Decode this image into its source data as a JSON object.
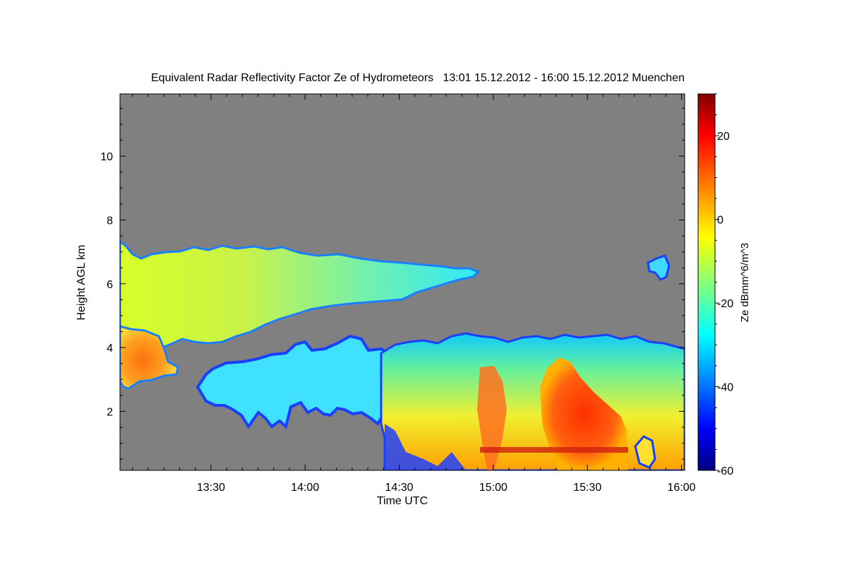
{
  "chart_data": {
    "type": "heatmap",
    "title": "Equivalent Radar Reflectivity Factor Ze of Hydrometeors   13:01 15.12.2012 - 16:00 15.12.2012 Muenchen",
    "xlabel": "Time UTC",
    "ylabel": "Height AGL km",
    "x_ticks": [
      "13:30",
      "14:00",
      "14:30",
      "15:00",
      "15:30",
      "16:00"
    ],
    "x_tick_minutes": [
      810,
      840,
      870,
      900,
      930,
      960
    ],
    "xlim_minutes": [
      781,
      961
    ],
    "y_ticks": [
      "2",
      "4",
      "6",
      "8",
      "10"
    ],
    "y_tick_values": [
      2,
      4,
      6,
      8,
      10
    ],
    "ylim": [
      0.15,
      11.95
    ],
    "colorbar": {
      "label": "Ze dBmm^6/m^3",
      "range": [
        -60,
        30
      ],
      "ticks": [
        "-60",
        "-40",
        "-20",
        "0",
        "20"
      ],
      "tick_values": [
        -60,
        -40,
        -20,
        0,
        20
      ]
    },
    "background_color": "#808080",
    "colormap": [
      "#000080",
      "#0000ff",
      "#00ffff",
      "#ffff00",
      "#ff0000",
      "#800000"
    ],
    "features": [
      {
        "desc": "upper cloud layer",
        "t_start": 781,
        "t_end": 895,
        "base_km": [
          4.0,
          6.1
        ],
        "top_km": [
          7.2,
          6.4
        ],
        "ze_dbz": [
          -25,
          -5
        ]
      },
      {
        "desc": "low dense core",
        "t_start": 781,
        "t_end": 795,
        "base_km": 3.0,
        "top_km": 4.3,
        "ze_dbz": [
          0,
          10
        ]
      },
      {
        "desc": "mid cloud layer",
        "t_start": 806,
        "t_end": 868,
        "base_km": 1.3,
        "top_km": 4.3,
        "ze_dbz": [
          -40,
          -20
        ]
      },
      {
        "desc": "precipitation region",
        "t_start": 868,
        "t_end": 961,
        "base_km": 0.15,
        "top_km": 4.4,
        "ze_dbz": [
          -40,
          20
        ]
      },
      {
        "desc": "isolated cell",
        "t_start": 946,
        "t_end": 952,
        "base_km": 6.0,
        "top_km": 6.8,
        "ze_dbz": [
          -40,
          -25
        ]
      }
    ]
  }
}
